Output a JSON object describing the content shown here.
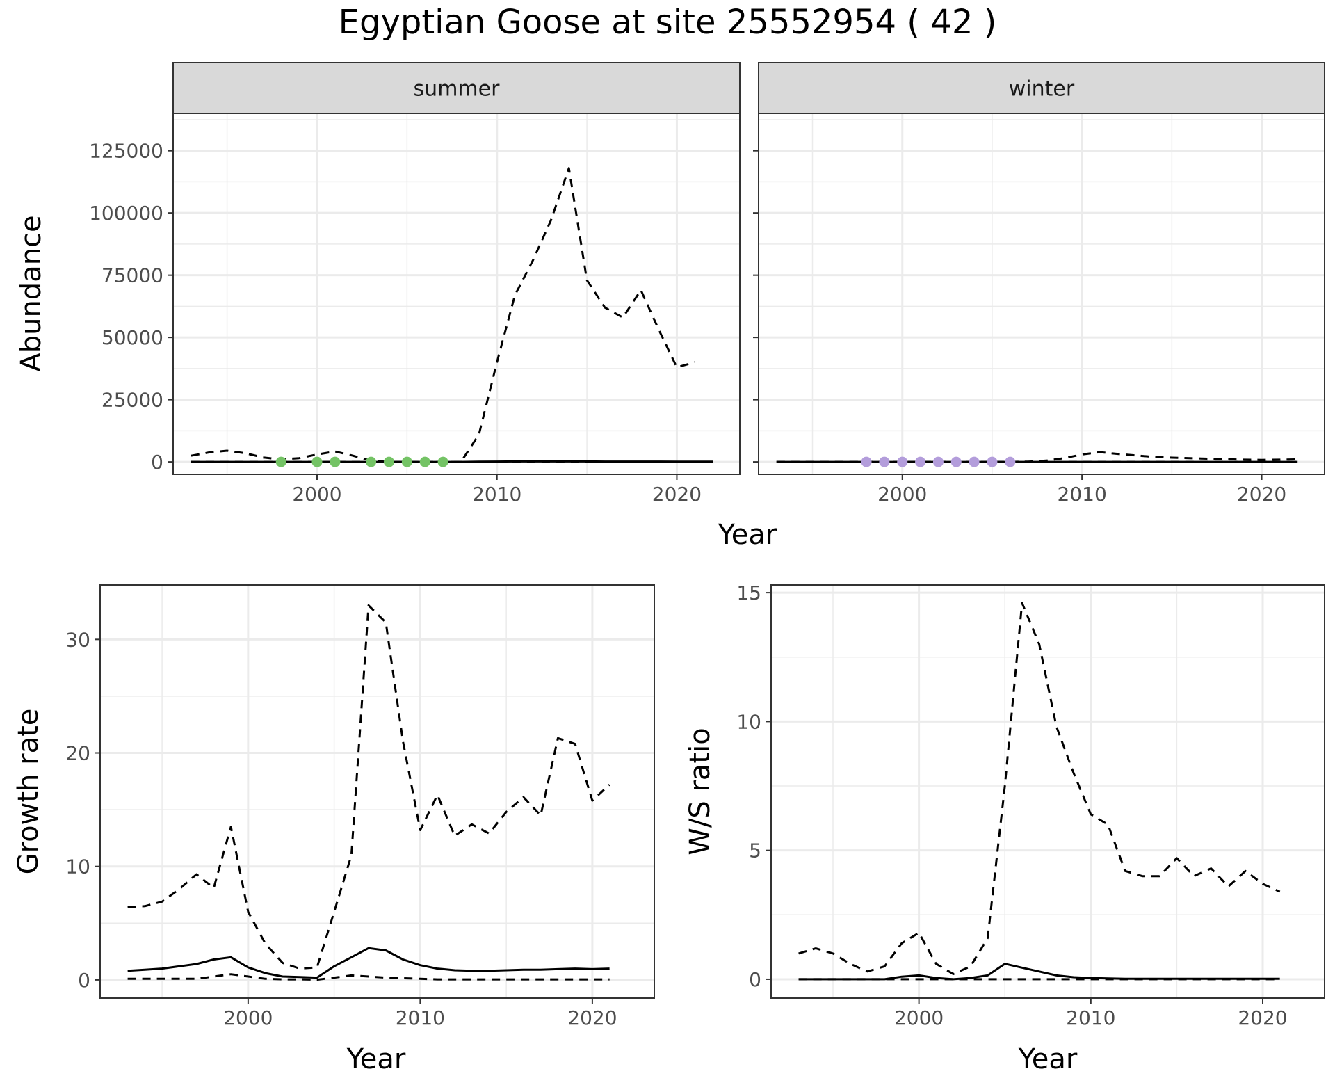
{
  "title": "Egyptian Goose at site 25552954 ( 42 )",
  "colors": {
    "summer_points": "#74c365",
    "winter_points": "#b39ddb",
    "line": "#000000",
    "strip": "#d9d9d9",
    "grid": "#ebebeb"
  },
  "chart_data": [
    {
      "type": "line",
      "panel": "summer",
      "strip_label": "summer",
      "xlabel": "Year",
      "ylabel": "Abundance",
      "xlim": [
        1992,
        2023.5
      ],
      "ylim": [
        -5000,
        140000
      ],
      "x_ticks": [
        2000,
        2010,
        2020
      ],
      "x_tick_labels": [
        "2000",
        "2010",
        "2020"
      ],
      "y_ticks": [
        0,
        25000,
        50000,
        75000,
        100000,
        125000
      ],
      "y_tick_labels": [
        "0",
        "25000",
        "50000",
        "75000",
        "100000",
        "125000"
      ],
      "series": [
        {
          "style": "solid",
          "x": [
            1993,
            1994,
            1995,
            1996,
            1997,
            1998,
            1999,
            2000,
            2001,
            2002,
            2003,
            2004,
            2005,
            2006,
            2007,
            2008,
            2009,
            2010,
            2011,
            2012,
            2013,
            2014,
            2015,
            2016,
            2017,
            2018,
            2019,
            2020,
            2021,
            2022
          ],
          "y": [
            0,
            0,
            0,
            0,
            0,
            0,
            0,
            0,
            0,
            0,
            0,
            0,
            0,
            0,
            0,
            0,
            100,
            150,
            200,
            200,
            200,
            200,
            200,
            150,
            150,
            150,
            150,
            100,
            100,
            100
          ]
        },
        {
          "style": "dashed",
          "x": [
            1993,
            1994,
            1995,
            1996,
            1997,
            1998,
            1999,
            2000,
            2001,
            2002,
            2003,
            2004,
            2005,
            2006,
            2007,
            2008,
            2009,
            2010,
            2011,
            2012,
            2013,
            2014,
            2015,
            2016,
            2017,
            2018,
            2019,
            2020,
            2021
          ],
          "y": [
            2500,
            3800,
            4500,
            3500,
            1800,
            1000,
            1500,
            3000,
            4200,
            2500,
            500,
            0,
            0,
            0,
            0,
            0,
            11000,
            40000,
            67000,
            81000,
            97000,
            118000,
            73000,
            62000,
            58000,
            69000,
            53000,
            38000,
            40000
          ]
        },
        {
          "style": "dashed",
          "x": [
            1993,
            2000,
            2005,
            2010,
            2015,
            2020,
            2022
          ],
          "y": [
            0,
            0,
            0,
            0,
            0,
            0,
            0
          ]
        },
        {
          "style": "points",
          "color": "#74c365",
          "x": [
            1998,
            2000,
            2001,
            2003,
            2004,
            2005,
            2006,
            2007
          ],
          "y": [
            0,
            0,
            0,
            0,
            0,
            0,
            0,
            0
          ]
        }
      ]
    },
    {
      "type": "line",
      "panel": "winter",
      "strip_label": "winter",
      "xlabel": "Year",
      "ylabel": "",
      "xlim": [
        1992,
        2023.5
      ],
      "ylim": [
        -5000,
        140000
      ],
      "x_ticks": [
        2000,
        2010,
        2020
      ],
      "x_tick_labels": [
        "2000",
        "2010",
        "2020"
      ],
      "y_ticks": [
        0,
        25000,
        50000,
        75000,
        100000,
        125000
      ],
      "y_tick_labels": [],
      "series": [
        {
          "style": "solid",
          "x": [
            1993,
            1995,
            2000,
            2005,
            2010,
            2015,
            2020,
            2022
          ],
          "y": [
            0,
            0,
            0,
            0,
            0,
            0,
            0,
            0
          ]
        },
        {
          "style": "dashed",
          "x": [
            1993,
            1995,
            2000,
            2006,
            2007,
            2008,
            2009,
            2010,
            2011,
            2012,
            2013,
            2014,
            2015,
            2016,
            2017,
            2018,
            2019,
            2020,
            2021,
            2022
          ],
          "y": [
            0,
            0,
            0,
            0,
            100,
            500,
            1500,
            3000,
            3900,
            3200,
            2600,
            2000,
            1700,
            1500,
            1300,
            1100,
            900,
            800,
            900,
            1000
          ]
        },
        {
          "style": "dashed",
          "x": [
            1993,
            2000,
            2005,
            2010,
            2015,
            2020,
            2022
          ],
          "y": [
            0,
            0,
            0,
            0,
            0,
            0,
            0
          ]
        },
        {
          "style": "points",
          "color": "#b39ddb",
          "x": [
            1998,
            1999,
            2000,
            2001,
            2002,
            2003,
            2004,
            2005,
            2006
          ],
          "y": [
            0,
            0,
            0,
            0,
            0,
            0,
            0,
            0,
            0
          ]
        }
      ]
    },
    {
      "type": "line",
      "panel": "growth",
      "xlabel": "Year",
      "ylabel": "Growth rate",
      "xlim": [
        1991.4,
        2023.6
      ],
      "ylim": [
        -1.6,
        34.8
      ],
      "x_ticks": [
        2000,
        2010,
        2020
      ],
      "x_tick_labels": [
        "2000",
        "2010",
        "2020"
      ],
      "y_ticks": [
        0,
        10,
        20,
        30
      ],
      "y_tick_labels": [
        "0",
        "10",
        "20",
        "30"
      ],
      "series": [
        {
          "style": "solid",
          "x": [
            1993,
            1994,
            1995,
            1996,
            1997,
            1998,
            1999,
            2000,
            2001,
            2002,
            2003,
            2004,
            2005,
            2006,
            2007,
            2008,
            2009,
            2010,
            2011,
            2012,
            2013,
            2014,
            2015,
            2016,
            2017,
            2018,
            2019,
            2020,
            2021
          ],
          "y": [
            0.8,
            0.9,
            1.0,
            1.2,
            1.4,
            1.8,
            2.0,
            1.1,
            0.6,
            0.3,
            0.25,
            0.2,
            1.2,
            2.0,
            2.8,
            2.6,
            1.8,
            1.3,
            1.0,
            0.85,
            0.8,
            0.8,
            0.85,
            0.9,
            0.9,
            0.95,
            1.0,
            0.95,
            1.0
          ]
        },
        {
          "style": "dashed",
          "x": [
            1993,
            1994,
            1995,
            1996,
            1997,
            1998,
            1999,
            2000,
            2001,
            2002,
            2003,
            2004,
            2005,
            2006,
            2007,
            2008,
            2009,
            2010,
            2011,
            2012,
            2013,
            2014,
            2015,
            2016,
            2017,
            2018,
            2019,
            2020,
            2021
          ],
          "y": [
            6.4,
            6.5,
            6.9,
            8.0,
            9.3,
            8.1,
            13.5,
            6.0,
            3.2,
            1.5,
            1.0,
            1.1,
            6.0,
            11.0,
            33.0,
            31.5,
            21.0,
            13.2,
            16.3,
            12.7,
            13.7,
            12.9,
            14.8,
            16.1,
            14.5,
            21.3,
            20.8,
            15.8,
            17.2
          ]
        },
        {
          "style": "dashed",
          "x": [
            1993,
            1994,
            1995,
            1996,
            1997,
            1998,
            1999,
            2000,
            2001,
            2002,
            2003,
            2004,
            2005,
            2006,
            2007,
            2008,
            2009,
            2010,
            2011,
            2012,
            2013,
            2014,
            2015,
            2016,
            2017,
            2018,
            2019,
            2020,
            2021
          ],
          "y": [
            0.1,
            0.1,
            0.1,
            0.1,
            0.1,
            0.3,
            0.5,
            0.3,
            0.1,
            0.05,
            0.05,
            0.02,
            0.2,
            0.4,
            0.3,
            0.2,
            0.15,
            0.1,
            0.05,
            0.05,
            0.05,
            0.05,
            0.05,
            0.05,
            0.05,
            0.05,
            0.05,
            0.05,
            0.05
          ]
        }
      ]
    },
    {
      "type": "line",
      "panel": "ws_ratio",
      "xlabel": "Year",
      "ylabel": "W/S ratio",
      "xlim": [
        1991.4,
        2023.6
      ],
      "ylim": [
        -0.73,
        15.3
      ],
      "x_ticks": [
        2000,
        2010,
        2020
      ],
      "x_tick_labels": [
        "2000",
        "2010",
        "2020"
      ],
      "y_ticks": [
        0,
        5,
        10,
        15
      ],
      "y_tick_labels": [
        "0",
        "5",
        "10",
        "15"
      ],
      "series": [
        {
          "style": "solid",
          "x": [
            1993,
            1994,
            1995,
            1996,
            1997,
            1998,
            1999,
            2000,
            2001,
            2002,
            2003,
            2004,
            2005,
            2006,
            2007,
            2008,
            2009,
            2010,
            2011,
            2012,
            2013,
            2014,
            2015,
            2016,
            2017,
            2018,
            2019,
            2020,
            2021
          ],
          "y": [
            0,
            0,
            0,
            0,
            0,
            0,
            0.1,
            0.15,
            0.05,
            0,
            0.05,
            0.15,
            0.6,
            0.45,
            0.3,
            0.15,
            0.08,
            0.05,
            0.03,
            0.02,
            0.02,
            0.02,
            0.02,
            0.02,
            0.02,
            0.02,
            0.02,
            0.02,
            0.02
          ]
        },
        {
          "style": "dashed",
          "x": [
            1993,
            1994,
            1995,
            1996,
            1997,
            1998,
            1999,
            2000,
            2001,
            2002,
            2003,
            2004,
            2005,
            2006,
            2007,
            2008,
            2009,
            2010,
            2011,
            2012,
            2013,
            2014,
            2015,
            2016,
            2017,
            2018,
            2019,
            2020,
            2021
          ],
          "y": [
            1.0,
            1.2,
            1.0,
            0.6,
            0.3,
            0.5,
            1.4,
            1.8,
            0.6,
            0.2,
            0.5,
            1.6,
            7.5,
            14.6,
            13.0,
            9.8,
            8.0,
            6.4,
            6.0,
            4.2,
            4.0,
            4.0,
            4.7,
            4.0,
            4.3,
            3.6,
            4.2,
            3.7,
            3.4
          ]
        },
        {
          "style": "dashed",
          "x": [
            1993,
            1995,
            2000,
            2005,
            2010,
            2015,
            2020,
            2021
          ],
          "y": [
            0,
            0,
            0,
            0,
            0,
            0,
            0,
            0
          ]
        }
      ]
    }
  ]
}
